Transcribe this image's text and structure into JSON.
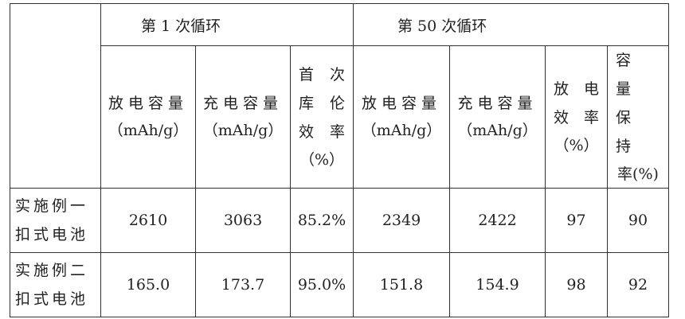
{
  "table": {
    "groups": [
      "第 1 次循环",
      "第 50 次循环"
    ],
    "columns": [
      {
        "label": "放电容量",
        "unit": "（mAh/g）"
      },
      {
        "label": "充电容量",
        "unit": "（mAh/g）"
      },
      {
        "label_lines": [
          "首　次",
          "库　伦",
          "效　率"
        ],
        "unit": "（%）"
      },
      {
        "label": "放电容量",
        "unit": "（mAh/g）"
      },
      {
        "label": "充电容量",
        "unit": "（mAh/g）"
      },
      {
        "label_lines": [
          "放　电",
          "效　率"
        ],
        "unit": "（%）"
      },
      {
        "label_lines": [
          "容　量",
          "保　持"
        ],
        "unit": "率(%)"
      }
    ],
    "rows": [
      {
        "name_lines": [
          "实施例一",
          "扣式电池"
        ],
        "values": [
          "2610",
          "3063",
          "85.2%",
          "2349",
          "2422",
          "97",
          "90"
        ]
      },
      {
        "name_lines": [
          "实施例二",
          "扣式电池"
        ],
        "values": [
          "165.0",
          "173.7",
          "95.0%",
          "151.8",
          "154.9",
          "98",
          "92"
        ]
      }
    ]
  }
}
